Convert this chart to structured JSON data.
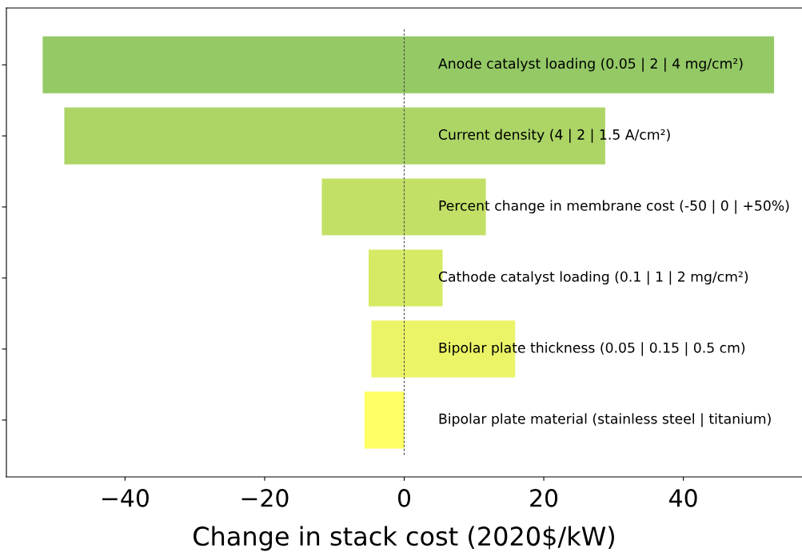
{
  "chart_data": {
    "type": "bar",
    "orientation": "horizontal",
    "categories": [
      "Anode catalyst loading (0.05 | 2 | 4 mg/cm²)",
      "Current density (4 | 2 | 1.5 A/cm²)",
      "Percent change in membrane cost (-50 | 0 | +50%)",
      "Cathode catalyst loading (0.1 | 1 | 2 mg/cm²)",
      "Bipolar plate thickness (0.05 | 0.15 | 0.5 cm)",
      "Bipolar plate material (stainless steel | titanium)"
    ],
    "base": [
      -51.8,
      -48.7,
      -11.8,
      -5.1,
      -4.7,
      -5.7
    ],
    "values": [
      104.8,
      77.5,
      23.5,
      10.6,
      20.6,
      5.7
    ],
    "colors": [
      "#94c966",
      "#acd566",
      "#c2e066",
      "#d6ea66",
      "#eaf466",
      "#ffff66"
    ],
    "xlim": [
      -57,
      57
    ],
    "xticks": [
      {
        "value": -40,
        "label": "−40"
      },
      {
        "value": -20,
        "label": "−20"
      },
      0,
      20,
      40
    ],
    "xlabel": "Change in stack cost (2020$/kW)",
    "ref_lines": [
      {
        "axis": "x",
        "value": 0,
        "color": "#444444",
        "line_style": "dashed"
      }
    ],
    "tick_labels": "x"
  }
}
